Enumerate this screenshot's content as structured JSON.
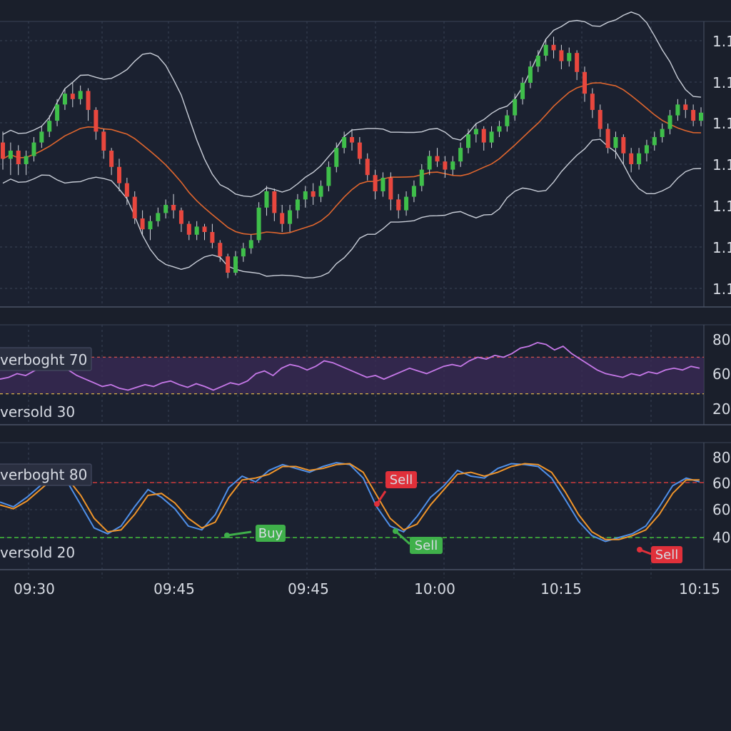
{
  "chart_data": [
    {
      "type": "candlestick",
      "panel": "price",
      "price_labels": [
        "1.1",
        "1.1",
        "1.1",
        "1.1",
        "1.1",
        "1.1",
        "1.1"
      ],
      "ylim": [
        0,
        100
      ],
      "colors": {
        "up": "#3fbf4a",
        "down": "#e8473e",
        "ma": "#e0662e",
        "bands": "#c9ced8"
      },
      "candles": [
        [
          58,
          52,
          62,
          48
        ],
        [
          52,
          55,
          58,
          46
        ],
        [
          55,
          50,
          57,
          46
        ],
        [
          50,
          53,
          55,
          46
        ],
        [
          53,
          58,
          60,
          51
        ],
        [
          58,
          62,
          64,
          56
        ],
        [
          62,
          66,
          68,
          60
        ],
        [
          66,
          72,
          74,
          64
        ],
        [
          72,
          76,
          78,
          70
        ],
        [
          76,
          74,
          80,
          71
        ],
        [
          74,
          77,
          79,
          72
        ],
        [
          77,
          70,
          78,
          66
        ],
        [
          70,
          62,
          71,
          59
        ],
        [
          62,
          55,
          63,
          52
        ],
        [
          55,
          49,
          56,
          46
        ],
        [
          49,
          43,
          52,
          40
        ],
        [
          43,
          38,
          45,
          35
        ],
        [
          38,
          30,
          40,
          28
        ],
        [
          30,
          26,
          33,
          24
        ],
        [
          26,
          29,
          31,
          22
        ],
        [
          29,
          32,
          34,
          27
        ],
        [
          32,
          35,
          37,
          30
        ],
        [
          35,
          33,
          39,
          30
        ],
        [
          33,
          28,
          34,
          25
        ],
        [
          28,
          24,
          29,
          22
        ],
        [
          24,
          27,
          29,
          22
        ],
        [
          27,
          25,
          28,
          22
        ],
        [
          25,
          21,
          28,
          19
        ],
        [
          21,
          16,
          22,
          14
        ],
        [
          16,
          10,
          17,
          8
        ],
        [
          10,
          16,
          18,
          9
        ],
        [
          16,
          19,
          21,
          14
        ],
        [
          19,
          22,
          24,
          17
        ],
        [
          22,
          34,
          36,
          21
        ],
        [
          34,
          40,
          42,
          31
        ],
        [
          40,
          32,
          41,
          29
        ],
        [
          32,
          28,
          35,
          25
        ],
        [
          28,
          33,
          35,
          25
        ],
        [
          33,
          37,
          39,
          30
        ],
        [
          37,
          40,
          42,
          34
        ],
        [
          40,
          38,
          43,
          35
        ],
        [
          38,
          42,
          44,
          36
        ],
        [
          42,
          49,
          51,
          40
        ],
        [
          49,
          56,
          58,
          47
        ],
        [
          56,
          60,
          62,
          54
        ],
        [
          60,
          58,
          63,
          55
        ],
        [
          58,
          52,
          60,
          50
        ],
        [
          52,
          46,
          54,
          44
        ],
        [
          46,
          40,
          48,
          37
        ],
        [
          40,
          45,
          47,
          38
        ],
        [
          45,
          37,
          47,
          33
        ],
        [
          37,
          33,
          39,
          30
        ],
        [
          33,
          38,
          40,
          31
        ],
        [
          38,
          42,
          44,
          36
        ],
        [
          42,
          48,
          50,
          40
        ],
        [
          48,
          53,
          55,
          46
        ],
        [
          53,
          51,
          56,
          49
        ],
        [
          51,
          48,
          53,
          45
        ],
        [
          48,
          51,
          53,
          46
        ],
        [
          51,
          56,
          58,
          49
        ],
        [
          56,
          61,
          63,
          54
        ],
        [
          61,
          63,
          65,
          58
        ],
        [
          63,
          58,
          64,
          55
        ],
        [
          58,
          62,
          64,
          56
        ],
        [
          62,
          64,
          66,
          60
        ],
        [
          64,
          68,
          70,
          62
        ],
        [
          68,
          74,
          76,
          66
        ],
        [
          74,
          80,
          82,
          72
        ],
        [
          80,
          86,
          88,
          78
        ],
        [
          86,
          90,
          92,
          84
        ],
        [
          90,
          94,
          96,
          88
        ],
        [
          94,
          92,
          97,
          89
        ],
        [
          92,
          88,
          94,
          85
        ],
        [
          88,
          91,
          93,
          86
        ],
        [
          91,
          84,
          92,
          81
        ],
        [
          84,
          76,
          86,
          73
        ],
        [
          76,
          70,
          78,
          67
        ],
        [
          70,
          63,
          72,
          60
        ],
        [
          63,
          56,
          65,
          54
        ],
        [
          56,
          60,
          62,
          52
        ],
        [
          60,
          54,
          61,
          50
        ],
        [
          54,
          50,
          56,
          47
        ],
        [
          50,
          54,
          56,
          48
        ],
        [
          54,
          57,
          59,
          51
        ],
        [
          57,
          60,
          62,
          55
        ],
        [
          60,
          63,
          65,
          58
        ],
        [
          63,
          68,
          70,
          61
        ],
        [
          68,
          72,
          74,
          66
        ],
        [
          72,
          70,
          74,
          67
        ],
        [
          70,
          66,
          72,
          64
        ],
        [
          66,
          69,
          71,
          64
        ]
      ]
    },
    {
      "type": "line",
      "panel": "rsi",
      "ylim": [
        0,
        100
      ],
      "ticks": [
        "80",
        "60",
        "20"
      ],
      "overbought_label": "verboght 70",
      "oversold_label": "versold 30",
      "levels": [
        70,
        30
      ],
      "color": "#c678e8",
      "values": [
        46,
        48,
        52,
        50,
        55,
        60,
        58,
        62,
        56,
        50,
        46,
        42,
        38,
        40,
        36,
        34,
        37,
        40,
        38,
        42,
        44,
        40,
        37,
        41,
        38,
        34,
        38,
        42,
        40,
        44,
        52,
        55,
        50,
        58,
        62,
        60,
        56,
        60,
        66,
        64,
        60,
        56,
        52,
        48,
        50,
        46,
        50,
        54,
        58,
        55,
        52,
        56,
        60,
        62,
        60,
        66,
        70,
        68,
        72,
        70,
        74,
        80,
        82,
        86,
        84,
        78,
        82,
        74,
        68,
        62,
        56,
        52,
        50,
        48,
        52,
        50,
        54,
        52,
        56,
        58,
        56,
        60,
        58
      ]
    },
    {
      "type": "line",
      "panel": "stochastic",
      "ylim": [
        0,
        100
      ],
      "ticks": [
        "80",
        "60",
        "60",
        "40"
      ],
      "overbought_label": "verboght 80",
      "oversold_label": "versold 20",
      "levels": [
        80,
        20
      ],
      "series": [
        {
          "color": "#4f8fe8",
          "values": [
            55,
            50,
            60,
            72,
            84,
            76,
            52,
            28,
            22,
            30,
            50,
            68,
            60,
            48,
            30,
            26,
            42,
            70,
            82,
            76,
            88,
            94,
            90,
            86,
            92,
            96,
            94,
            80,
            50,
            30,
            24,
            40,
            60,
            72,
            88,
            82,
            80,
            90,
            95,
            94,
            92,
            80,
            58,
            35,
            20,
            14,
            18,
            22,
            30,
            50,
            72,
            80,
            76
          ]
        },
        {
          "color": "#f0952a",
          "values": [
            52,
            48,
            56,
            68,
            80,
            80,
            62,
            38,
            24,
            26,
            42,
            62,
            64,
            54,
            38,
            28,
            34,
            60,
            78,
            80,
            84,
            92,
            92,
            88,
            90,
            94,
            95,
            86,
            62,
            38,
            26,
            32,
            52,
            68,
            84,
            86,
            82,
            86,
            92,
            95,
            94,
            86,
            66,
            42,
            24,
            16,
            16,
            20,
            26,
            42,
            64,
            78,
            78
          ]
        }
      ],
      "signals": [
        {
          "label": "Buy",
          "color": "#3fb04a"
        },
        {
          "label": "Sell",
          "color": "#e0303a"
        },
        {
          "label": "Sell",
          "color": "#3fb04a"
        },
        {
          "label": "Sell",
          "color": "#e0303a"
        }
      ]
    }
  ],
  "time_labels": [
    "09:30",
    "09:45",
    "09:45",
    "10:00",
    "10:15",
    "10:15"
  ]
}
